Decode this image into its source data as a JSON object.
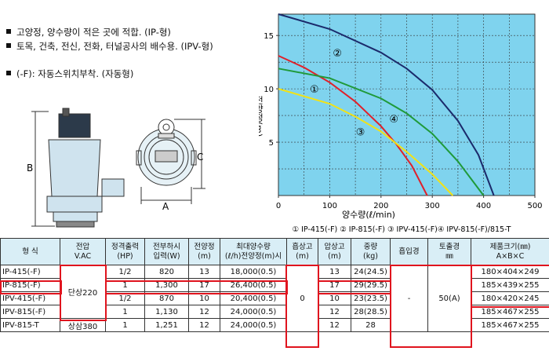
{
  "bullets": [
    "고양정, 양수량이 적은 곳에 적합. (IP-형)",
    "토목, 건축, 전신, 전화, 터널공사의 배수용. (IPV-형)",
    "(-F): 자동스위치부착. (자동형)"
  ],
  "dimensions": {
    "a": "A",
    "b": "B",
    "c": "C"
  },
  "chart_data": {
    "type": "line",
    "y_label": "전양정(m)",
    "x_label": "양수량(ℓ/min)",
    "legend_text": "① IP-415(-F) ② IP-815(-F) ③ IPV-415(-F)④ IPV-815(-F)/815-T",
    "xlim": [
      0,
      500
    ],
    "xticks": [
      0,
      100,
      200,
      300,
      400,
      500
    ],
    "ylim": [
      0,
      17
    ],
    "yticks": [
      5,
      10,
      15
    ],
    "grid": true,
    "series": [
      {
        "name": "①",
        "color": "#e0202a",
        "x": [
          0,
          50,
          100,
          150,
          200,
          230,
          260,
          290
        ],
        "values": [
          13.1,
          12,
          10.6,
          8.8,
          6.5,
          4.8,
          2.8,
          0
        ],
        "label_at": [
          70,
          10
        ]
      },
      {
        "name": "②",
        "color": "#1b2a6b",
        "x": [
          0,
          100,
          200,
          250,
          300,
          350,
          390,
          420
        ],
        "values": [
          17,
          15.6,
          13.4,
          11.9,
          9.9,
          7,
          3.8,
          0
        ],
        "label_at": [
          115,
          13.4
        ]
      },
      {
        "name": "③",
        "color": "#f2e216",
        "x": [
          0,
          100,
          150,
          200,
          250,
          300,
          340
        ],
        "values": [
          10,
          8.6,
          7.4,
          6,
          4.1,
          2,
          0
        ],
        "label_at": [
          160,
          6
        ]
      },
      {
        "name": "④",
        "color": "#1f9a3a",
        "x": [
          0,
          100,
          200,
          250,
          300,
          350,
          400
        ],
        "values": [
          11.9,
          11,
          9.1,
          7.7,
          5.8,
          3.2,
          0
        ],
        "label_at": [
          225,
          7.2
        ]
      }
    ]
  },
  "table": {
    "header": [
      [
        "형 식"
      ],
      [
        "전압",
        "V.AC"
      ],
      [
        "정격출력",
        "(HP)"
      ],
      [
        "전부하시",
        "입력(W)"
      ],
      [
        "전양정",
        "(m)"
      ],
      [
        "최대양수량",
        "(ℓ/h)전양정(m)시"
      ],
      [
        "흡상고",
        "(m)"
      ],
      [
        "압상고",
        "(m)"
      ],
      [
        "중량",
        "(kg)"
      ],
      [
        "흡입경"
      ],
      [
        "토출경",
        "㎜"
      ],
      [
        "제품크기(㎜)",
        "A×B×C"
      ]
    ],
    "rows": [
      [
        "IP-415(-F)",
        "단상220",
        "1/2",
        "820",
        "13",
        "18,000(0.5)",
        "0",
        "13",
        "24(24.5)",
        "-",
        "50(A)",
        "180×404×249"
      ],
      [
        "IP-815(-F)",
        "1",
        "1,300",
        "17",
        "26,400(0.5)",
        "17",
        "29(29.5)",
        "185×439×255"
      ],
      [
        "IPV-415(-F)",
        "1/2",
        "870",
        "10",
        "20,400(0.5)",
        "10",
        "23(23.5)",
        "180×420×245"
      ],
      [
        "IPV-815(-F)",
        "1",
        "1,130",
        "12",
        "24,000(0.5)",
        "12",
        "28(28.5)",
        "185×467×255"
      ],
      [
        "IPV-815-T",
        "상삼380",
        "1",
        "1,251",
        "12",
        "24,000(0.5)",
        "12",
        "28",
        "185×467×255"
      ]
    ]
  }
}
